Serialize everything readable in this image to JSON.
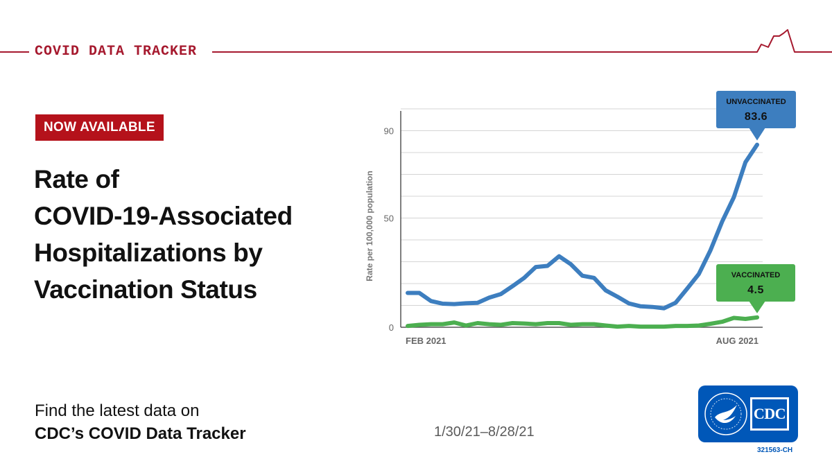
{
  "header": {
    "brand_title": "COVID DATA TRACKER"
  },
  "badge": {
    "label": "NOW AVAILABLE"
  },
  "headline": {
    "lines": [
      "Rate of",
      "COVID-19-Associated",
      "Hospitalizations by",
      "Vaccination Status"
    ]
  },
  "footer": {
    "line1": "Find the latest data on",
    "line2": "CDC’s COVID Data Tracker",
    "date_range": "1/30/21–8/28/21"
  },
  "logo": {
    "text": "CDC",
    "code": "321563-CH"
  },
  "colors": {
    "brand_red": "#a6192e",
    "badge_red": "#b5121b",
    "unvaccinated": "#3d7ebf",
    "vaccinated": "#4caf50",
    "cdc_blue": "#0057b8"
  },
  "chart_data": {
    "type": "line",
    "title": "",
    "xlabel": "",
    "ylabel": "Rate per 100,000 population",
    "ylim": [
      0,
      100
    ],
    "yticks": [
      0,
      50,
      90
    ],
    "grid": true,
    "xtick_labels": [
      "FEB 2021",
      "AUG 2021"
    ],
    "x": [
      "1/30/21",
      "2/6/21",
      "2/13/21",
      "2/20/21",
      "2/27/21",
      "3/6/21",
      "3/13/21",
      "3/20/21",
      "3/27/21",
      "4/3/21",
      "4/10/21",
      "4/17/21",
      "4/24/21",
      "5/1/21",
      "5/8/21",
      "5/15/21",
      "5/22/21",
      "5/29/21",
      "6/5/21",
      "6/12/21",
      "6/19/21",
      "6/26/21",
      "7/3/21",
      "7/10/21",
      "7/17/21",
      "7/24/21",
      "7/31/21",
      "8/7/21",
      "8/14/21",
      "8/21/21",
      "8/28/21"
    ],
    "series": [
      {
        "name": "UNVACCINATED",
        "color": "#3d7ebf",
        "values": [
          15.7,
          15.7,
          12.0,
          10.8,
          10.6,
          11.0,
          11.2,
          13.6,
          15.2,
          18.8,
          22.6,
          27.6,
          28.1,
          32.5,
          28.9,
          23.6,
          22.6,
          16.9,
          14.0,
          10.9,
          9.6,
          9.3,
          8.7,
          11.2,
          17.7,
          24.4,
          35.3,
          48.4,
          59.5,
          75.6,
          83.6
        ],
        "callout": {
          "label": "UNVACCINATED",
          "value": "83.6"
        }
      },
      {
        "name": "VACCINATED",
        "color": "#4caf50",
        "values": [
          0.6,
          1.1,
          1.4,
          1.4,
          2.2,
          0.8,
          1.9,
          1.4,
          1.1,
          1.9,
          1.7,
          1.4,
          1.9,
          1.9,
          1.1,
          1.4,
          1.4,
          0.8,
          0.3,
          0.6,
          0.3,
          0.3,
          0.3,
          0.6,
          0.6,
          0.8,
          1.6,
          2.5,
          4.3,
          3.8,
          4.5
        ],
        "callout": {
          "label": "VACCINATED",
          "value": "4.5"
        }
      }
    ]
  }
}
